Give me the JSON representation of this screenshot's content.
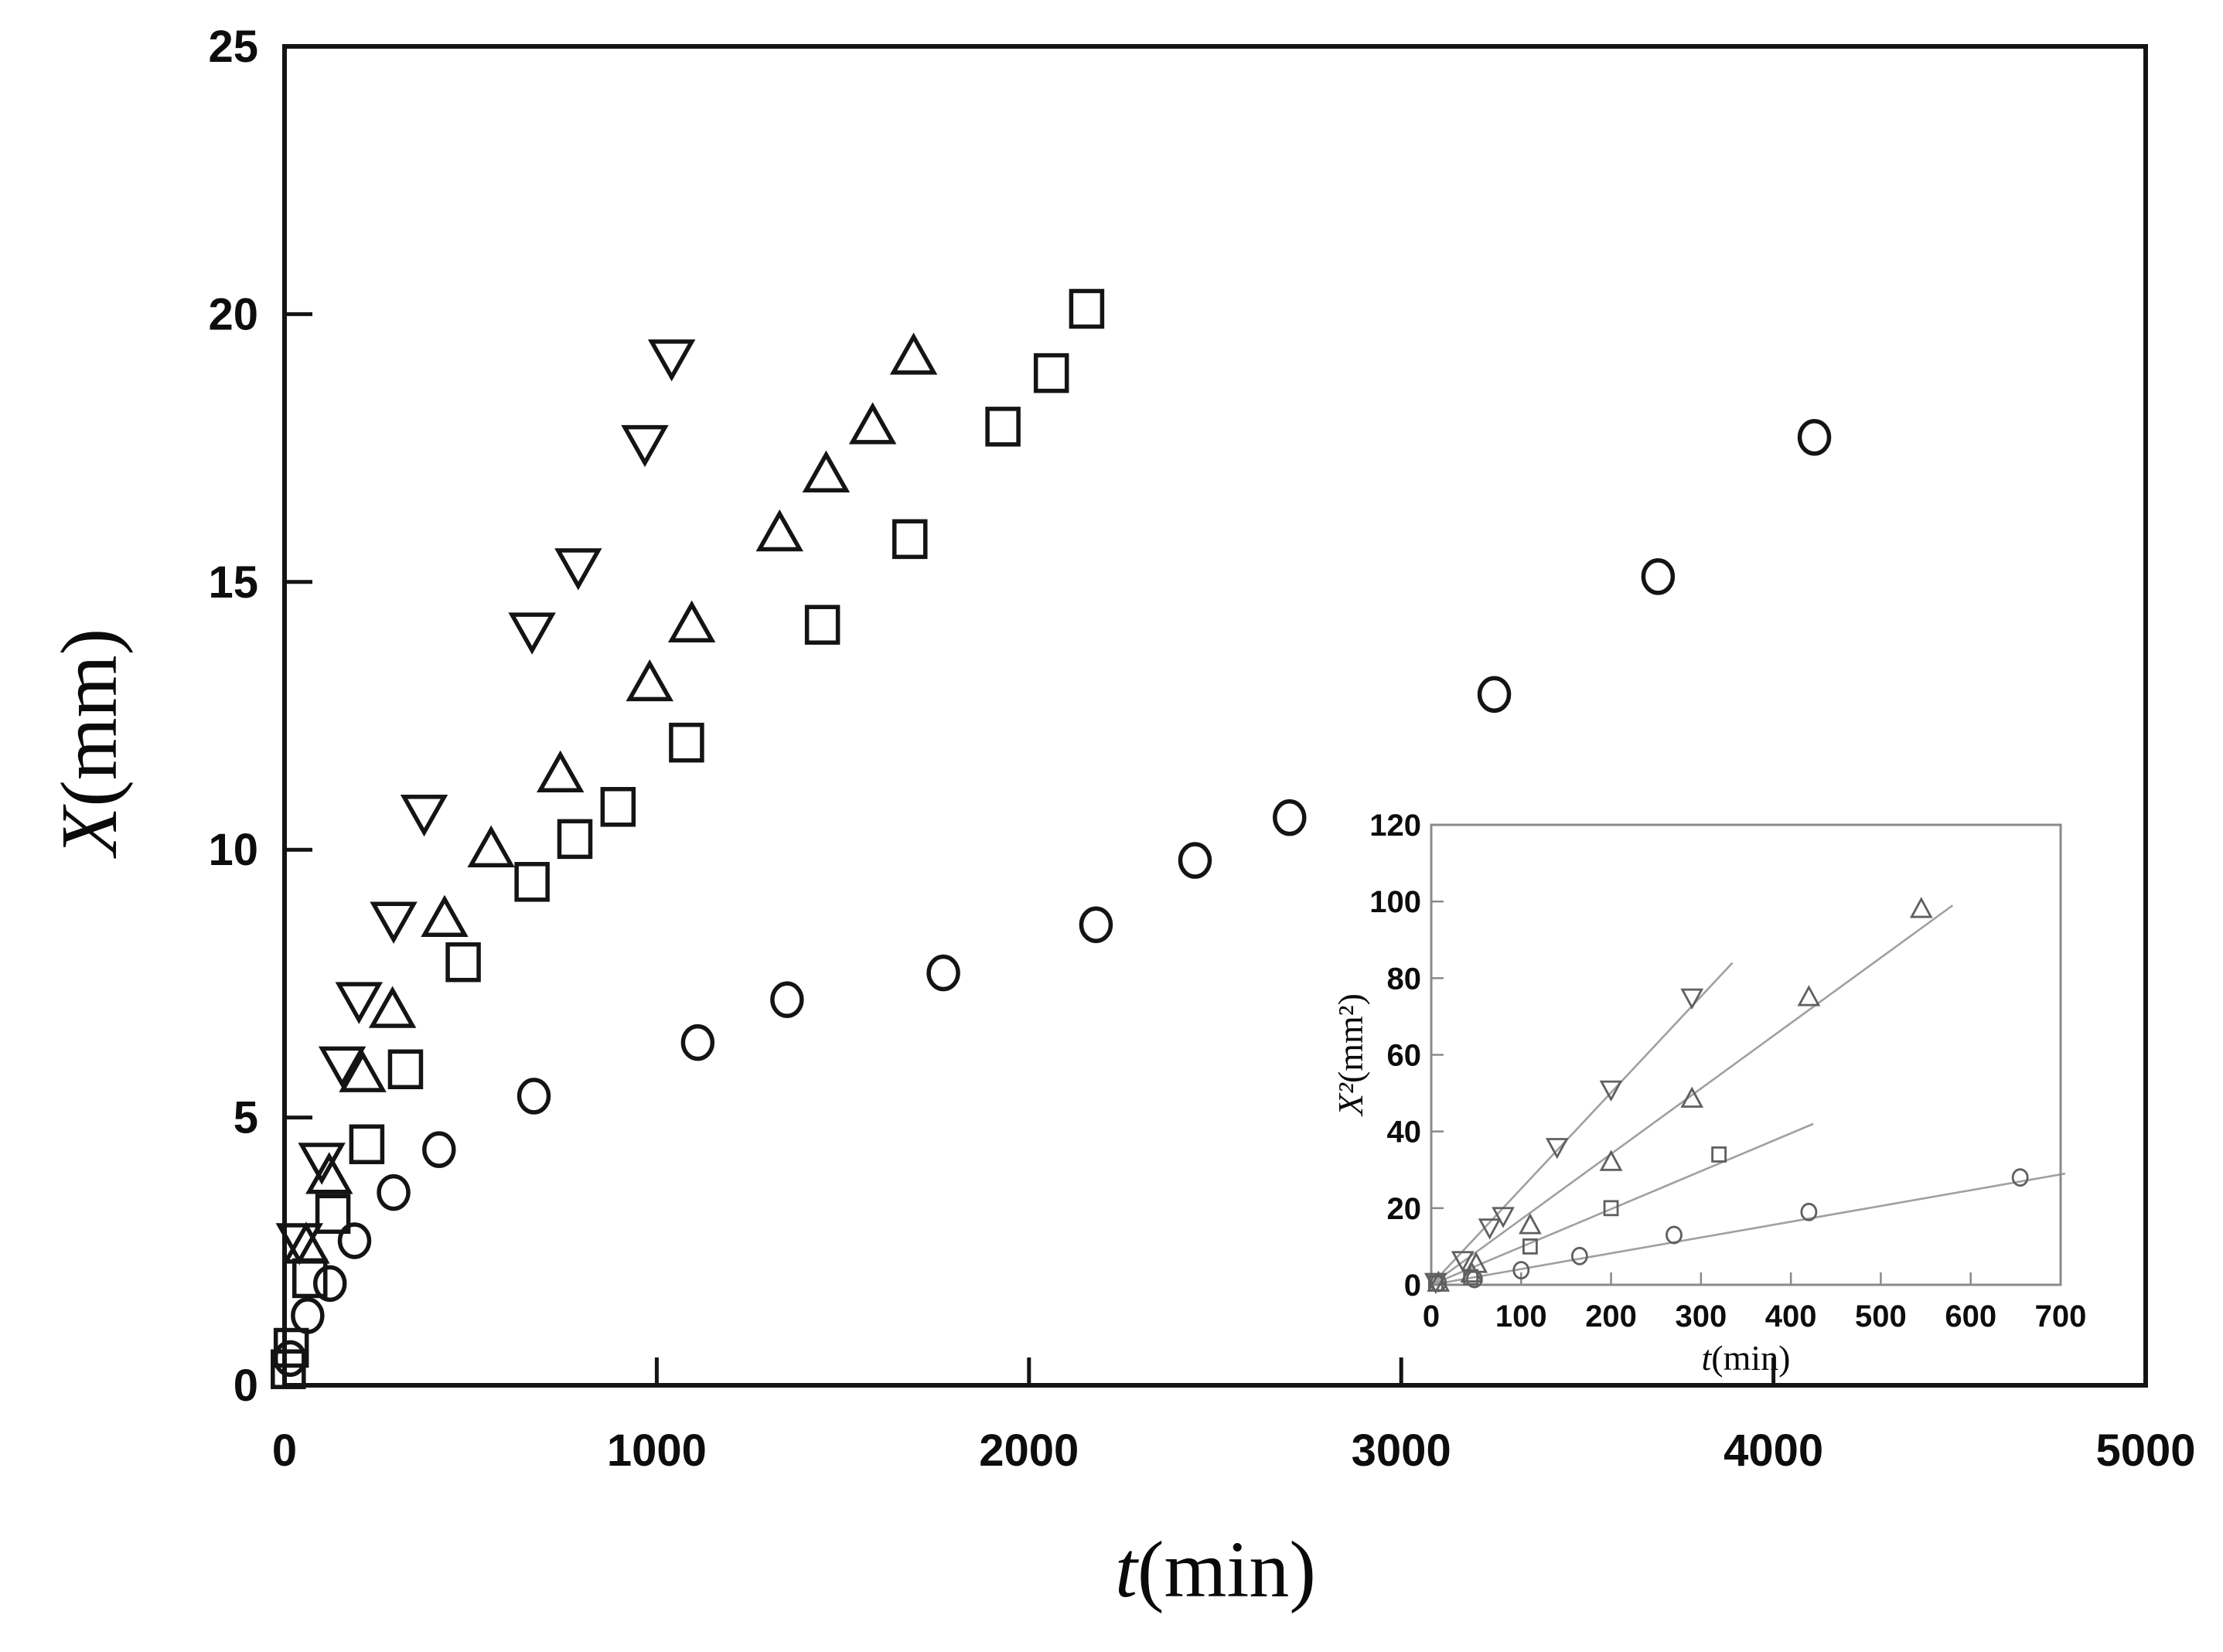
{
  "figure": {
    "background": "#ffffff",
    "colors": {
      "main_marker": "#141414",
      "main_frame": "#141414",
      "inset_marker": "#5f5f5f",
      "inset_fit_line": "#a0a0a0",
      "inset_frame": "#8a8a8a",
      "tick_text": "#0d0d0d"
    }
  },
  "chart_data": [
    {
      "id": "main",
      "type": "scatter",
      "title": "",
      "xlabel": {
        "var": "t",
        "rest": "(min)"
      },
      "ylabel": {
        "var": "X",
        "rest": "(mm)"
      },
      "xlim": [
        0,
        5000
      ],
      "ylim": [
        0,
        25
      ],
      "xticks": [
        0,
        1000,
        2000,
        3000,
        4000,
        5000
      ],
      "yticks": [
        0,
        5,
        10,
        15,
        20,
        25
      ],
      "grid": false,
      "legend": "none",
      "series": [
        {
          "name": "down-triangle",
          "marker": "triangle-down",
          "points": [
            [
              40,
              2.7
            ],
            [
              100,
              4.2
            ],
            [
              155,
              6.0
            ],
            [
              200,
              7.2
            ],
            [
              293,
              8.7
            ],
            [
              375,
              10.7
            ],
            [
              665,
              14.1
            ],
            [
              789,
              15.3
            ],
            [
              968,
              17.6
            ],
            [
              1040,
              19.2
            ]
          ]
        },
        {
          "name": "up-triangle",
          "marker": "triangle-up",
          "points": [
            [
              58,
              2.6
            ],
            [
              120,
              3.9
            ],
            [
              210,
              5.8
            ],
            [
              290,
              7.0
            ],
            [
              430,
              8.7
            ],
            [
              555,
              10.0
            ],
            [
              741,
              11.4
            ],
            [
              981,
              13.1
            ],
            [
              1094,
              14.2
            ],
            [
              1330,
              15.9
            ],
            [
              1455,
              17.0
            ],
            [
              1580,
              17.9
            ],
            [
              1690,
              19.2
            ]
          ]
        },
        {
          "name": "square",
          "marker": "square",
          "points": [
            [
              10,
              0.3
            ],
            [
              18,
              0.7
            ],
            [
              68,
              2.0
            ],
            [
              130,
              3.2
            ],
            [
              221,
              4.5
            ],
            [
              325,
              5.9
            ],
            [
              480,
              7.9
            ],
            [
              665,
              9.4
            ],
            [
              780,
              10.2
            ],
            [
              896,
              10.8
            ],
            [
              1080,
              12.0
            ],
            [
              1445,
              14.2
            ],
            [
              1680,
              15.8
            ],
            [
              1930,
              17.9
            ],
            [
              2060,
              18.9
            ],
            [
              2155,
              20.1
            ]
          ]
        },
        {
          "name": "circle",
          "marker": "circle",
          "points": [
            [
              15,
              0.5
            ],
            [
              62,
              1.3
            ],
            [
              122,
              1.9
            ],
            [
              188,
              2.7
            ],
            [
              293,
              3.6
            ],
            [
              415,
              4.4
            ],
            [
              670,
              5.4
            ],
            [
              1110,
              6.4
            ],
            [
              1350,
              7.2
            ],
            [
              1770,
              7.7
            ],
            [
              2180,
              8.6
            ],
            [
              2446,
              9.8
            ],
            [
              2700,
              10.6
            ],
            [
              3250,
              12.9
            ],
            [
              3690,
              15.1
            ],
            [
              4110,
              17.7
            ]
          ]
        }
      ]
    },
    {
      "id": "inset",
      "type": "scatter",
      "title": "",
      "xlabel": {
        "var": "t",
        "rest": "(min)"
      },
      "ylabel": {
        "var": "X²",
        "rest": "(mm²)"
      },
      "xlim": [
        0,
        700
      ],
      "ylim": [
        0,
        120
      ],
      "xticks": [
        0,
        100,
        200,
        300,
        400,
        500,
        600,
        700
      ],
      "yticks": [
        0,
        20,
        40,
        60,
        80,
        100,
        120
      ],
      "grid": false,
      "legend": "none",
      "series": [
        {
          "name": "down-triangle",
          "marker": "triangle-down",
          "fit_line_end": [
            335,
            84
          ],
          "points": [
            [
              5,
              0.8
            ],
            [
              35,
              6.5
            ],
            [
              65,
              15
            ],
            [
              80,
              18
            ],
            [
              140,
              36
            ],
            [
              200,
              51
            ],
            [
              290,
              75
            ]
          ]
        },
        {
          "name": "up-triangle",
          "marker": "triangle-up",
          "fit_line_end": [
            580,
            99
          ],
          "points": [
            [
              8,
              0.5
            ],
            [
              45,
              2.9
            ],
            [
              50,
              5.4
            ],
            [
              110,
              15.5
            ],
            [
              200,
              32
            ],
            [
              290,
              48.5
            ],
            [
              420,
              75
            ],
            [
              545,
              98
            ]
          ]
        },
        {
          "name": "square",
          "marker": "square",
          "fit_line_end": [
            425,
            42
          ],
          "points": [
            [
              5,
              0.4
            ],
            [
              44,
              2.0
            ],
            [
              110,
              10
            ],
            [
              200,
              20
            ],
            [
              320,
              34
            ]
          ]
        },
        {
          "name": "circle",
          "marker": "circle",
          "fit_line_end": [
            705,
            29
          ],
          "points": [
            [
              8,
              0.5
            ],
            [
              48,
              1.5
            ],
            [
              100,
              3.8
            ],
            [
              165,
              7.5
            ],
            [
              270,
              13
            ],
            [
              420,
              19
            ],
            [
              655,
              28
            ]
          ]
        }
      ]
    }
  ]
}
